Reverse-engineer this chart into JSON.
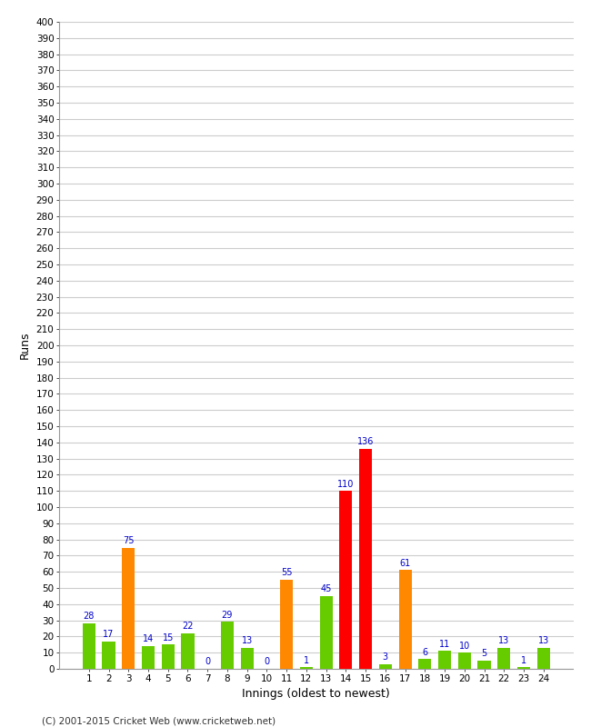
{
  "title": "",
  "xlabel": "Innings (oldest to newest)",
  "ylabel": "Runs",
  "innings": [
    1,
    2,
    3,
    4,
    5,
    6,
    7,
    8,
    9,
    10,
    11,
    12,
    13,
    14,
    15,
    16,
    17,
    18,
    19,
    20,
    21,
    22,
    23,
    24
  ],
  "values": [
    28,
    17,
    75,
    14,
    15,
    22,
    0,
    29,
    13,
    0,
    55,
    1,
    45,
    110,
    136,
    3,
    61,
    6,
    11,
    10,
    5,
    13,
    1,
    13
  ],
  "colors": [
    "#66cc00",
    "#66cc00",
    "#ff8800",
    "#66cc00",
    "#66cc00",
    "#66cc00",
    "#66cc00",
    "#66cc00",
    "#66cc00",
    "#66cc00",
    "#ff8800",
    "#66cc00",
    "#66cc00",
    "#ff0000",
    "#ff0000",
    "#66cc00",
    "#ff8800",
    "#66cc00",
    "#66cc00",
    "#66cc00",
    "#66cc00",
    "#66cc00",
    "#66cc00",
    "#66cc00"
  ],
  "ylim": [
    0,
    400
  ],
  "yticks": [
    0,
    10,
    20,
    30,
    40,
    50,
    60,
    70,
    80,
    90,
    100,
    110,
    120,
    130,
    140,
    150,
    160,
    170,
    180,
    190,
    200,
    210,
    220,
    230,
    240,
    250,
    260,
    270,
    280,
    290,
    300,
    310,
    320,
    330,
    340,
    350,
    360,
    370,
    380,
    390,
    400
  ],
  "background_color": "#ffffff",
  "grid_color": "#cccccc",
  "label_color": "#0000cc",
  "footer": "(C) 2001-2015 Cricket Web (www.cricketweb.net)",
  "bar_width": 0.65
}
